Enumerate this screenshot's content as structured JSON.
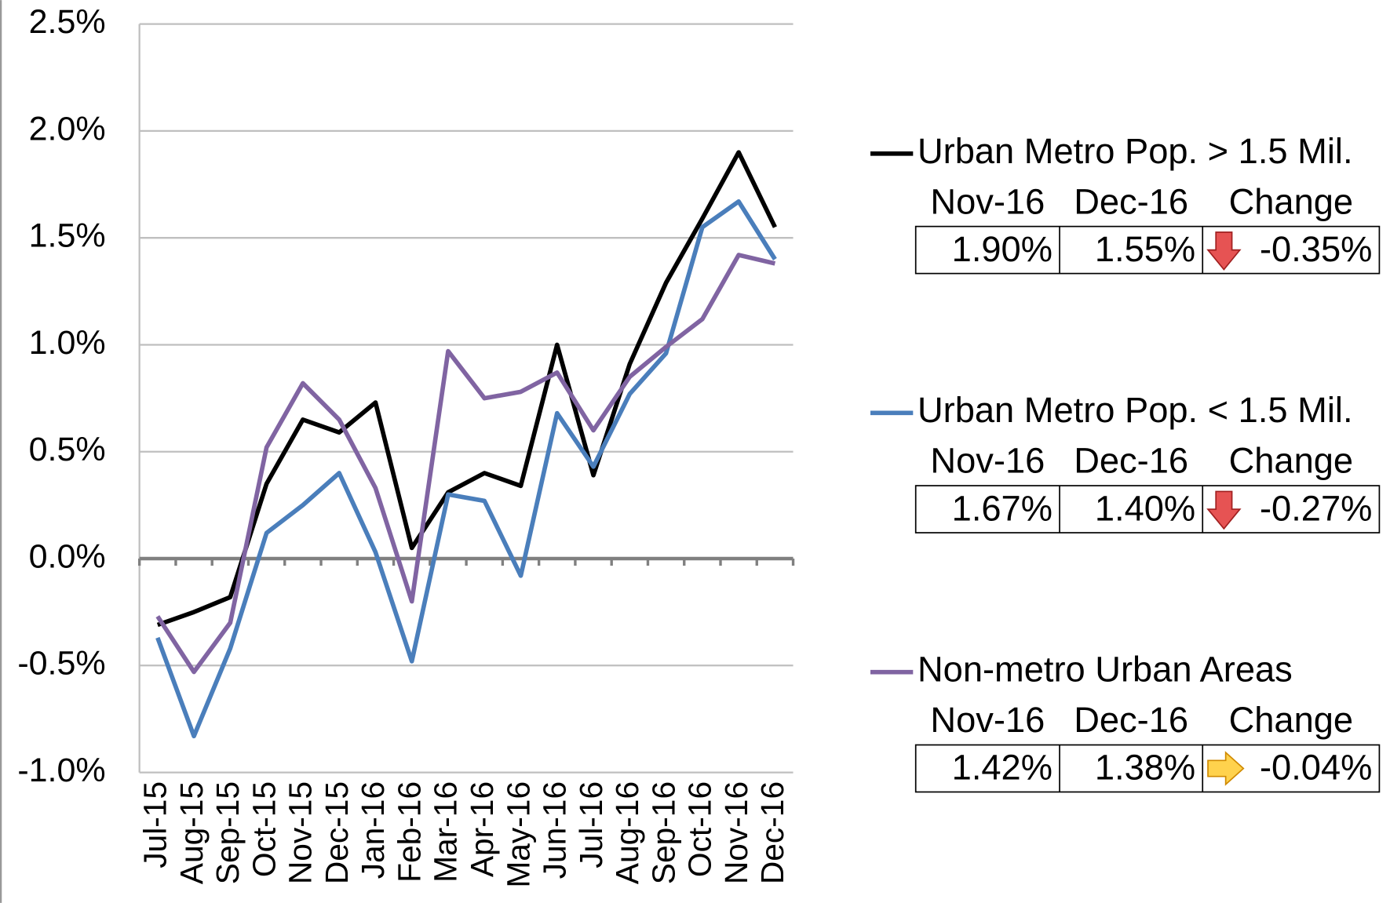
{
  "chart_data": {
    "type": "line",
    "categories": [
      "Jul-15",
      "Aug-15",
      "Sep-15",
      "Oct-15",
      "Nov-15",
      "Dec-15",
      "Jan-16",
      "Feb-16",
      "Mar-16",
      "Apr-16",
      "May-16",
      "Jun-16",
      "Jul-16",
      "Aug-16",
      "Sep-16",
      "Oct-16",
      "Nov-16",
      "Dec-16"
    ],
    "ylim": [
      -1.0,
      2.5
    ],
    "yticks": [
      {
        "value": -1.0,
        "label": "-1.0%"
      },
      {
        "value": -0.5,
        "label": "-0.5%"
      },
      {
        "value": 0,
        "label": "0.0%"
      },
      {
        "value": 0.5,
        "label": "0.5%"
      },
      {
        "value": 1.0,
        "label": "1.0%"
      },
      {
        "value": 1.5,
        "label": "1.5%"
      },
      {
        "value": 2.0,
        "label": "2.0%"
      },
      {
        "value": 2.5,
        "label": "2.5%"
      }
    ],
    "grid": true,
    "series": [
      {
        "name": "Urban Metro Pop. > 1.5 Mil.",
        "color": "#000000",
        "values": [
          -0.31,
          -0.25,
          -0.18,
          0.35,
          0.65,
          0.59,
          0.73,
          0.05,
          0.31,
          0.4,
          0.34,
          1.0,
          0.39,
          0.91,
          1.29,
          1.59,
          1.9,
          1.55
        ],
        "table": {
          "headers": [
            "Nov-16",
            "Dec-16",
            "Change"
          ],
          "cells": [
            "1.90%",
            "1.55%",
            "-0.35%"
          ],
          "arrow": "down"
        }
      },
      {
        "name": "Urban Metro Pop. < 1.5 Mil.",
        "color": "#4a7ebb",
        "values": [
          -0.37,
          -0.83,
          -0.42,
          0.12,
          0.25,
          0.4,
          0.03,
          -0.48,
          0.3,
          0.27,
          -0.08,
          0.68,
          0.43,
          0.77,
          0.96,
          1.55,
          1.67,
          1.4
        ],
        "table": {
          "headers": [
            "Nov-16",
            "Dec-16",
            "Change"
          ],
          "cells": [
            "1.67%",
            "1.40%",
            "-0.27%"
          ],
          "arrow": "down"
        }
      },
      {
        "name": "Non-metro Urban Areas",
        "color": "#8064a2",
        "values": [
          -0.27,
          -0.53,
          -0.3,
          0.52,
          0.82,
          0.65,
          0.33,
          -0.2,
          0.97,
          0.75,
          0.78,
          0.87,
          0.6,
          0.85,
          0.99,
          1.12,
          1.42,
          1.38
        ],
        "table": {
          "headers": [
            "Nov-16",
            "Dec-16",
            "Change"
          ],
          "cells": [
            "1.42%",
            "1.38%",
            "-0.04%"
          ],
          "arrow": "right"
        }
      }
    ]
  }
}
